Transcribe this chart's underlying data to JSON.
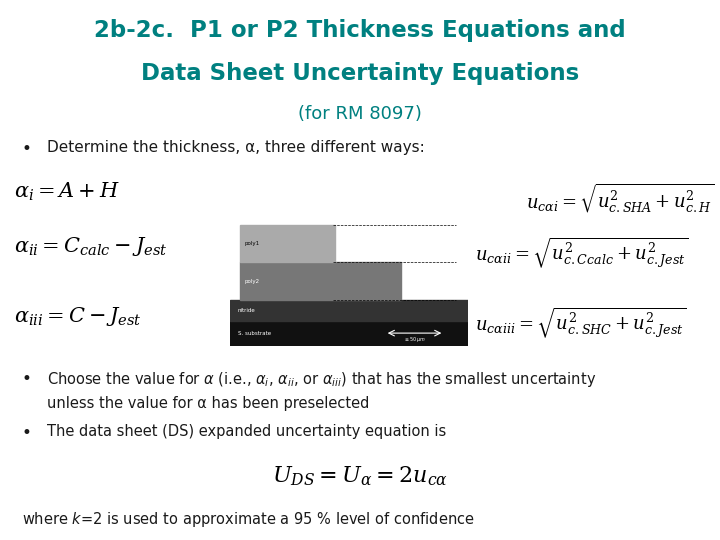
{
  "bg_color": "#ffffff",
  "title_line1": "2b-2c.  P1 or P2 Thickness Equations and",
  "title_line2": "Data Sheet Uncertainty Equations",
  "subtitle": "(for RM 8097)",
  "title_color": "#008080",
  "subtitle_color": "#008080",
  "text_color": "#1a1a1a",
  "eq_color": "#000000",
  "bullet1": "Determine the thickness, α, three different ways:",
  "bullet2a": "Choose the value for α (i.e., αi, αii, or αiii) that has the smallest uncertainty",
  "bullet2b": "unless the value for α has been preselected",
  "bullet3": "The data sheet (DS) expanded uncertainty equation is",
  "footer": "where k=2 is used to approximate a 95 % level of confidence"
}
